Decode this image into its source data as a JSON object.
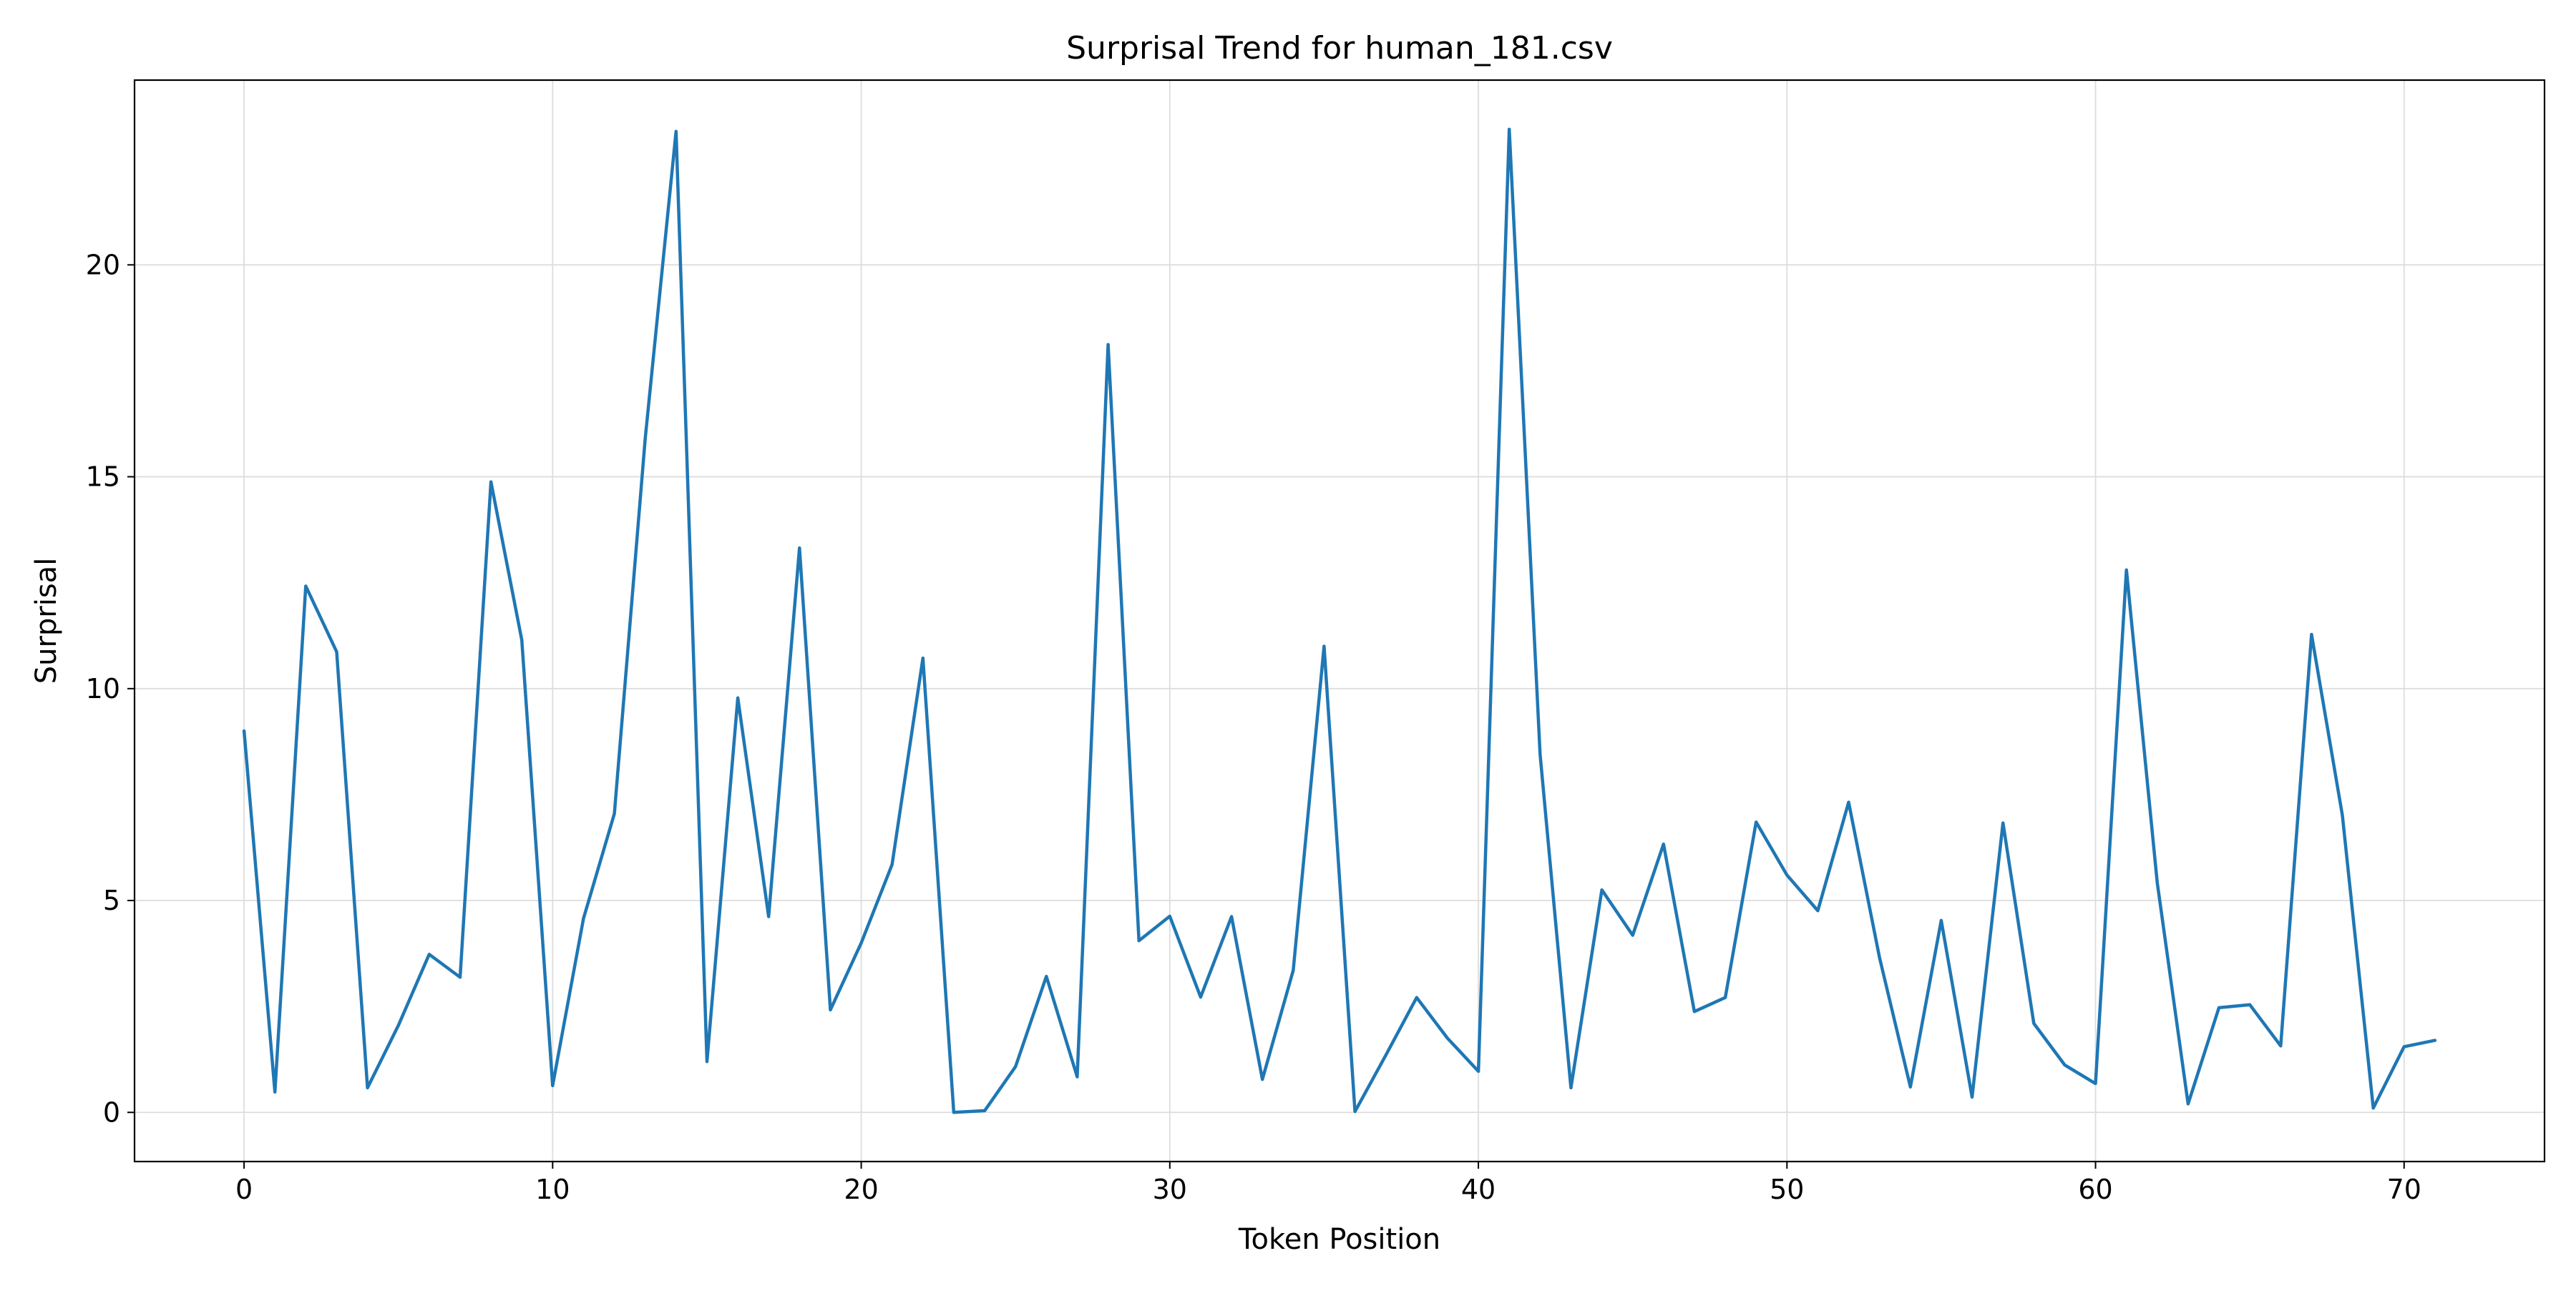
{
  "chart_data": {
    "type": "line",
    "title": "Surprisal Trend for human_181.csv",
    "xlabel": "Token Position",
    "ylabel": "Surprisal",
    "xlim": [
      -3.55,
      74.55
    ],
    "ylim": [
      -1.16,
      24.36
    ],
    "xticks": [
      0,
      10,
      20,
      30,
      40,
      50,
      60,
      70
    ],
    "yticks": [
      0,
      5,
      10,
      15,
      20
    ],
    "grid": true,
    "line_color": "#1f77b4",
    "series": [
      {
        "x": [
          0,
          1,
          2,
          3,
          4,
          5,
          6,
          7,
          8,
          9,
          10,
          11,
          12,
          13,
          14,
          15,
          16,
          17,
          18,
          19,
          20,
          21,
          22,
          23,
          24,
          25,
          26,
          27,
          28,
          29,
          30,
          31,
          32,
          33,
          34,
          35,
          36,
          37,
          38,
          39,
          40,
          41,
          42,
          43,
          44,
          45,
          46,
          47,
          48,
          49,
          50,
          51,
          52,
          53,
          54,
          55,
          56,
          57,
          58,
          59,
          60,
          61,
          62,
          63,
          64,
          65,
          66,
          67,
          68,
          69,
          70,
          71
        ],
        "values": [
          9.0,
          0.48,
          12.42,
          10.87,
          0.58,
          2.05,
          3.73,
          3.19,
          14.88,
          11.15,
          0.63,
          4.58,
          7.05,
          15.9,
          23.15,
          1.2,
          9.78,
          4.62,
          13.32,
          2.42,
          4.0,
          5.85,
          10.72,
          0.0,
          0.04,
          1.08,
          3.21,
          0.84,
          18.12,
          4.05,
          4.63,
          2.72,
          4.62,
          0.78,
          3.35,
          11.0,
          0.02,
          1.35,
          2.71,
          1.75,
          0.97,
          23.2,
          8.45,
          0.58,
          5.25,
          4.18,
          6.33,
          2.38,
          2.71,
          6.85,
          5.6,
          4.76,
          7.32,
          3.65,
          0.6,
          4.53,
          0.36,
          6.83,
          2.1,
          1.12,
          0.68,
          12.8,
          5.42,
          0.2,
          2.47,
          2.54,
          1.57,
          11.28,
          7.01,
          0.1,
          1.55,
          1.7
        ]
      }
    ]
  }
}
